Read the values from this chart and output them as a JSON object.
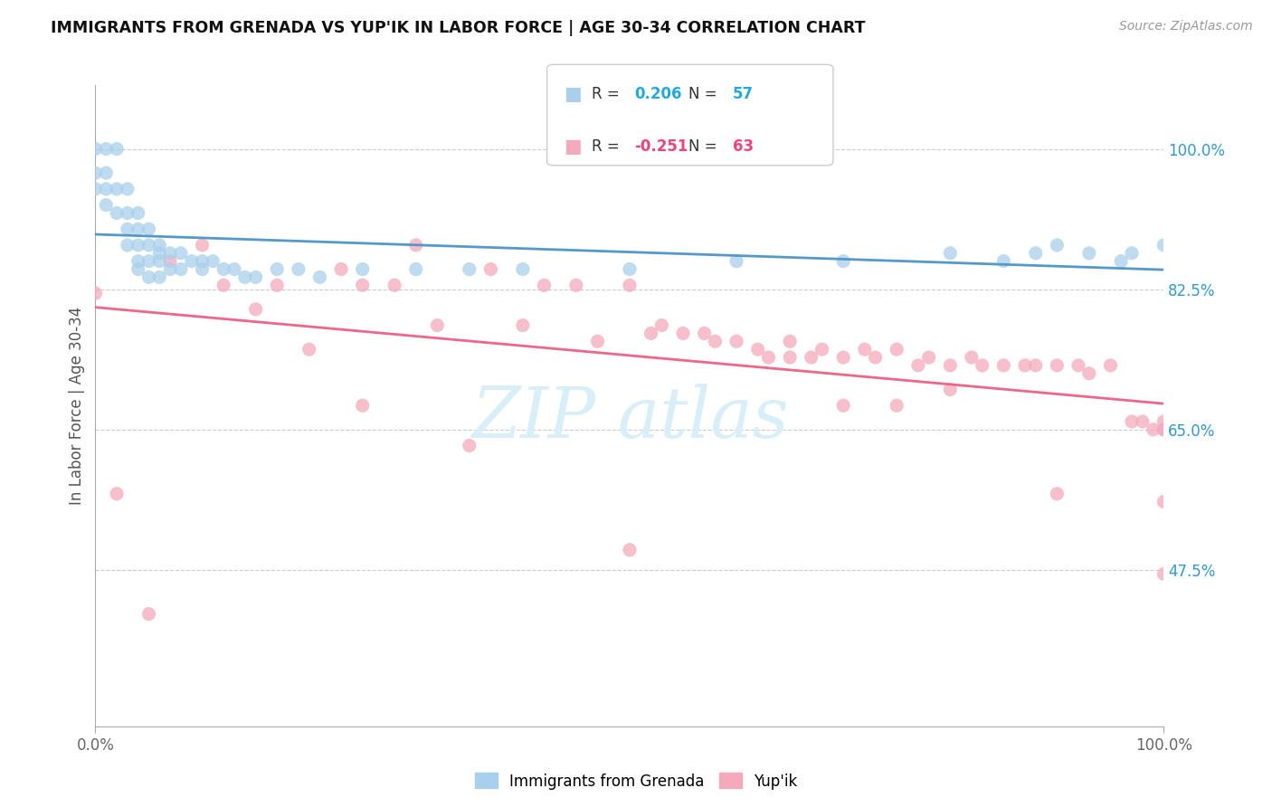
{
  "title": "IMMIGRANTS FROM GRENADA VS YUP'IK IN LABOR FORCE | AGE 30-34 CORRELATION CHART",
  "source": "Source: ZipAtlas.com",
  "ylabel": "In Labor Force | Age 30-34",
  "ytick_labels": [
    "100.0%",
    "82.5%",
    "65.0%",
    "47.5%"
  ],
  "ytick_values": [
    1.0,
    0.825,
    0.65,
    0.475
  ],
  "legend_label1": "Immigrants from Grenada",
  "legend_label2": "Yup'ik",
  "R1": 0.206,
  "N1": 57,
  "R2": -0.251,
  "N2": 63,
  "color_blue": "#A8CFEB",
  "color_pink": "#F5AABC",
  "color_blue_line": "#5599CC",
  "color_pink_line": "#EE6688",
  "color_blue_text": "#22AADD",
  "color_pink_text": "#EE4477",
  "color_right_axis": "#3399CC",
  "xlim": [
    0.0,
    1.0
  ],
  "ylim": [
    0.28,
    1.08
  ],
  "blue_scatter_x": [
    0.0,
    0.0,
    0.0,
    0.01,
    0.01,
    0.01,
    0.01,
    0.02,
    0.02,
    0.02,
    0.03,
    0.03,
    0.03,
    0.03,
    0.04,
    0.04,
    0.04,
    0.04,
    0.04,
    0.05,
    0.05,
    0.05,
    0.05,
    0.06,
    0.06,
    0.06,
    0.06,
    0.07,
    0.07,
    0.08,
    0.08,
    0.09,
    0.1,
    0.1,
    0.11,
    0.12,
    0.13,
    0.14,
    0.15,
    0.17,
    0.19,
    0.21,
    0.25,
    0.3,
    0.35,
    0.4,
    0.5,
    0.6,
    0.7,
    0.8,
    0.85,
    0.88,
    0.9,
    0.93,
    0.96,
    0.97,
    1.0
  ],
  "blue_scatter_y": [
    1.0,
    0.97,
    0.95,
    1.0,
    0.97,
    0.95,
    0.93,
    1.0,
    0.95,
    0.92,
    0.95,
    0.92,
    0.9,
    0.88,
    0.92,
    0.9,
    0.88,
    0.86,
    0.85,
    0.9,
    0.88,
    0.86,
    0.84,
    0.88,
    0.87,
    0.86,
    0.84,
    0.87,
    0.85,
    0.87,
    0.85,
    0.86,
    0.86,
    0.85,
    0.86,
    0.85,
    0.85,
    0.84,
    0.84,
    0.85,
    0.85,
    0.84,
    0.85,
    0.85,
    0.85,
    0.85,
    0.85,
    0.86,
    0.86,
    0.87,
    0.86,
    0.87,
    0.88,
    0.87,
    0.86,
    0.87,
    0.88
  ],
  "pink_scatter_x": [
    0.0,
    0.02,
    0.05,
    0.07,
    0.1,
    0.12,
    0.15,
    0.17,
    0.2,
    0.23,
    0.25,
    0.28,
    0.3,
    0.32,
    0.35,
    0.37,
    0.4,
    0.42,
    0.45,
    0.47,
    0.5,
    0.52,
    0.53,
    0.55,
    0.57,
    0.58,
    0.6,
    0.62,
    0.63,
    0.65,
    0.65,
    0.67,
    0.68,
    0.7,
    0.72,
    0.73,
    0.75,
    0.77,
    0.78,
    0.8,
    0.82,
    0.83,
    0.85,
    0.87,
    0.88,
    0.9,
    0.92,
    0.93,
    0.95,
    0.97,
    0.98,
    0.99,
    1.0,
    1.0,
    1.0,
    1.0,
    0.25,
    0.5,
    0.7,
    0.75,
    0.8,
    0.9,
    1.0
  ],
  "pink_scatter_y": [
    0.82,
    0.57,
    0.42,
    0.86,
    0.88,
    0.83,
    0.8,
    0.83,
    0.75,
    0.85,
    0.83,
    0.83,
    0.88,
    0.78,
    0.63,
    0.85,
    0.78,
    0.83,
    0.83,
    0.76,
    0.83,
    0.77,
    0.78,
    0.77,
    0.77,
    0.76,
    0.76,
    0.75,
    0.74,
    0.74,
    0.76,
    0.74,
    0.75,
    0.74,
    0.75,
    0.74,
    0.75,
    0.73,
    0.74,
    0.73,
    0.74,
    0.73,
    0.73,
    0.73,
    0.73,
    0.73,
    0.73,
    0.72,
    0.73,
    0.66,
    0.66,
    0.65,
    0.66,
    0.65,
    0.65,
    0.56,
    0.68,
    0.5,
    0.68,
    0.68,
    0.7,
    0.57,
    0.47
  ]
}
